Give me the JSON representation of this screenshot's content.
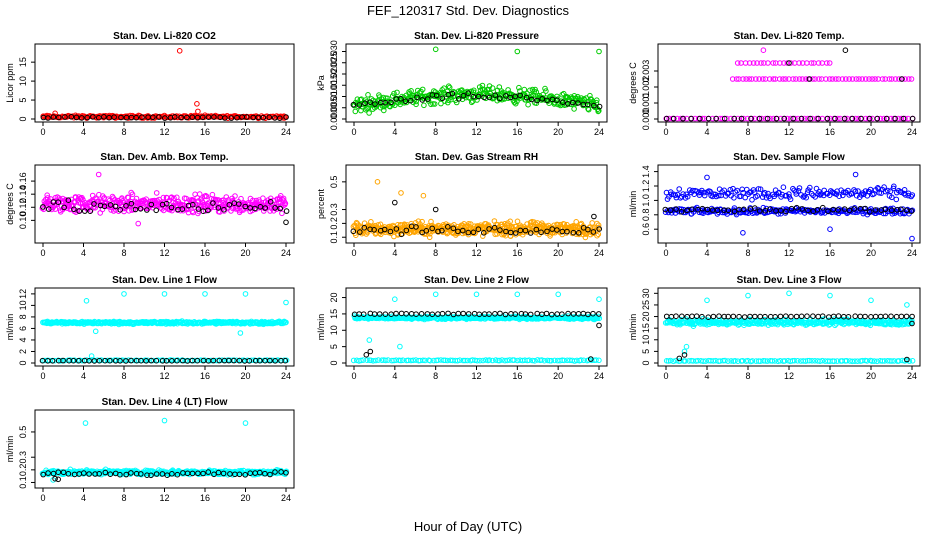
{
  "title": "FEF_120317  Std. Dev. Diagnostics",
  "xlabel": "Hour of Day (UTC)",
  "colors": {
    "red": "#ff0000",
    "green": "#00cc00",
    "magenta": "#ff00ff",
    "orange": "#ffa500",
    "blue": "#0000ff",
    "cyan": "#00ffff",
    "black": "#000000"
  },
  "chart_data": [
    {
      "type": "scatter",
      "title": "Stan. Dev. Li-820 CO2",
      "ylabel": "Licor ppm",
      "xlim": [
        0,
        24
      ],
      "ylim": [
        0,
        19
      ],
      "xticks": [
        "0",
        "4",
        "8",
        "12",
        "16",
        "20",
        "24"
      ],
      "yticks": [
        "0",
        "5",
        "10",
        "15"
      ],
      "ytick_values": [
        0,
        5,
        10,
        15
      ],
      "series": [
        {
          "name": "all",
          "color": "red",
          "base": 0.6,
          "spread": 0.5,
          "smooth": false,
          "count": 220,
          "outliers": [
            [
              13.5,
              18.0
            ],
            [
              15.2,
              4.0
            ],
            [
              15.3,
              2.0
            ],
            [
              1.2,
              1.5
            ]
          ]
        },
        {
          "name": "hourly",
          "color": "black",
          "base": 0.4,
          "spread": 0.3,
          "smooth": false,
          "count": 45,
          "outliers": []
        }
      ]
    },
    {
      "type": "scatter",
      "title": "Stan. Dev. Li-820 Pressure",
      "ylabel": "kPa",
      "xlim": [
        0,
        24
      ],
      "ylim": [
        0,
        0.032
      ],
      "xticks": [
        "0",
        "4",
        "8",
        "12",
        "16",
        "20",
        "24"
      ],
      "yticks": [
        "0.000",
        "0.005",
        "0.010",
        "0.015",
        "0.020",
        "0.025",
        "0.030"
      ],
      "ytick_values": [
        0,
        0.005,
        0.01,
        0.015,
        0.02,
        0.025,
        0.03
      ],
      "series": [
        {
          "name": "all",
          "color": "green",
          "base": 0.006,
          "amp": 0.005,
          "spread": 0.005,
          "smooth": true,
          "count": 360,
          "outliers": [
            [
              8,
              0.031
            ],
            [
              16,
              0.03
            ],
            [
              24,
              0.03
            ]
          ]
        },
        {
          "name": "hourly",
          "color": "black",
          "base": 0.006,
          "amp": 0.004,
          "spread": 0.002,
          "smooth": true,
          "count": 48,
          "outliers": []
        }
      ]
    },
    {
      "type": "scatter",
      "title": "Stan. Dev. Li-820 Temp.",
      "ylabel": "degrees C",
      "xlim": [
        0,
        24
      ],
      "ylim": [
        0,
        0.0045
      ],
      "xticks": [
        "0",
        "4",
        "8",
        "12",
        "16",
        "20",
        "24"
      ],
      "yticks": [
        "0.000",
        "0.001",
        "0.002",
        "0.003"
      ],
      "ytick_values": [
        0,
        0.001,
        0.002,
        0.003
      ],
      "series": [
        {
          "name": "zero",
          "color": "magenta",
          "level": 0,
          "count": 70,
          "outliers": []
        },
        {
          "name": "mid",
          "color": "magenta",
          "level": 0.0025,
          "count": 55,
          "xrange": [
            6.5,
            24
          ],
          "outliers": [
            [
              9.5,
              0.0043
            ]
          ]
        },
        {
          "name": "high",
          "color": "magenta",
          "level": 0.0035,
          "count": 25,
          "xrange": [
            7,
            16
          ],
          "outliers": []
        },
        {
          "name": "hourly",
          "color": "black",
          "level": 0,
          "count": 30,
          "outliers": [
            [
              17.5,
              0.0043
            ],
            [
              23,
              0.0025
            ],
            [
              12,
              0.0035
            ],
            [
              14,
              0.0025
            ]
          ]
        }
      ]
    },
    {
      "type": "scatter",
      "title": "Stan. Dev. Amb. Box Temp.",
      "ylabel": "degrees C",
      "xlim": [
        0,
        24
      ],
      "ylim": [
        0.07,
        0.18
      ],
      "xticks": [
        "0",
        "4",
        "8",
        "12",
        "16",
        "20",
        "24"
      ],
      "yticks": [
        "0.10",
        "0.12",
        "0.14",
        "0.16"
      ],
      "ytick_values": [
        0.1,
        0.12,
        0.14,
        0.16
      ],
      "series": [
        {
          "name": "all",
          "color": "magenta",
          "base": 0.125,
          "spread": 0.02,
          "smooth": false,
          "count": 420,
          "outliers": [
            [
              5.5,
              0.17
            ],
            [
              9.4,
              0.095
            ]
          ]
        },
        {
          "name": "hourly",
          "color": "black",
          "base": 0.12,
          "spread": 0.015,
          "smooth": false,
          "count": 48,
          "outliers": [
            [
              24,
              0.097
            ]
          ]
        }
      ]
    },
    {
      "type": "scatter",
      "title": "Stan. Dev. Gas Stream RH",
      "ylabel": "percent",
      "xlim": [
        0,
        24
      ],
      "ylim": [
        0.08,
        0.6
      ],
      "xticks": [
        "0",
        "4",
        "8",
        "12",
        "16",
        "20",
        "24"
      ],
      "yticks": [
        "0.1",
        "0.2",
        "0.3",
        "0.5"
      ],
      "ytick_values": [
        0.1,
        0.2,
        0.3,
        0.5
      ],
      "series": [
        {
          "name": "all",
          "color": "orange",
          "base": 0.16,
          "spread": 0.07,
          "smooth": false,
          "count": 480,
          "outliers": [
            [
              2.3,
              0.5
            ],
            [
              4.6,
              0.42
            ],
            [
              6.8,
              0.4
            ]
          ]
        },
        {
          "name": "hourly",
          "color": "black",
          "base": 0.15,
          "spread": 0.04,
          "smooth": false,
          "count": 48,
          "outliers": [
            [
              4,
              0.35
            ],
            [
              8,
              0.3
            ],
            [
              23.5,
              0.25
            ]
          ]
        }
      ]
    },
    {
      "type": "scatter",
      "title": "Stan. Dev. Sample Flow",
      "ylabel": "ml/min",
      "xlim": [
        0,
        24
      ],
      "ylim": [
        0.45,
        1.45
      ],
      "xticks": [
        "0",
        "4",
        "8",
        "12",
        "16",
        "20",
        "24"
      ],
      "yticks": [
        "0.6",
        "0.8",
        "1.0",
        "1.2",
        "1.4"
      ],
      "ytick_values": [
        0.6,
        0.8,
        1.0,
        1.2,
        1.4
      ],
      "series": [
        {
          "name": "high",
          "color": "blue",
          "base": 1.1,
          "spread": 0.12,
          "smooth": false,
          "count": 170,
          "outliers": [
            [
              4,
              1.32
            ],
            [
              18.5,
              1.36
            ]
          ]
        },
        {
          "name": "low",
          "color": "blue",
          "base": 0.85,
          "spread": 0.06,
          "smooth": false,
          "count": 230,
          "outliers": [
            [
              7.5,
              0.55
            ],
            [
              16,
              0.6
            ],
            [
              24,
              0.47
            ]
          ]
        },
        {
          "name": "hourly",
          "color": "black",
          "base": 0.87,
          "spread": 0.04,
          "smooth": false,
          "count": 48,
          "outliers": []
        }
      ]
    },
    {
      "type": "scatter",
      "title": "Stan. Dev. Line 1 Flow",
      "ylabel": "ml/min",
      "xlim": [
        0,
        24
      ],
      "ylim": [
        0,
        12.5
      ],
      "xticks": [
        "0",
        "4",
        "8",
        "12",
        "16",
        "20",
        "24"
      ],
      "yticks": [
        "0",
        "2",
        "4",
        "6",
        "8",
        "10",
        "12"
      ],
      "ytick_values": [
        0,
        2,
        4,
        6,
        8,
        10,
        12
      ],
      "series": [
        {
          "name": "upper",
          "color": "cyan",
          "base": 7.0,
          "spread": 0.35,
          "smooth": false,
          "count": 380,
          "outliers": [
            [
              4.3,
              10.8
            ],
            [
              8,
              12
            ],
            [
              12,
              12
            ],
            [
              16,
              12
            ],
            [
              20,
              12
            ],
            [
              24,
              10.5
            ],
            [
              5.2,
              5.5
            ],
            [
              19.5,
              5.2
            ],
            [
              4.8,
              1.2
            ]
          ]
        },
        {
          "name": "lower",
          "color": "cyan",
          "base": 0.45,
          "spread": 0.1,
          "smooth": false,
          "count": 100,
          "outliers": []
        },
        {
          "name": "hourly",
          "color": "black",
          "base": 0.4,
          "spread": 0.05,
          "smooth": false,
          "count": 48,
          "outliers": []
        }
      ]
    },
    {
      "type": "scatter",
      "title": "Stan. Dev. Line 2 Flow",
      "ylabel": "ml/min",
      "xlim": [
        0,
        24
      ],
      "ylim": [
        0,
        22
      ],
      "xticks": [
        "0",
        "4",
        "8",
        "12",
        "16",
        "20",
        "24"
      ],
      "yticks": [
        "0",
        "5",
        "10",
        "15",
        "20"
      ],
      "ytick_values": [
        0,
        5,
        10,
        15,
        20
      ],
      "series": [
        {
          "name": "upper",
          "color": "cyan",
          "base": 13.8,
          "spread": 0.6,
          "smooth": false,
          "count": 380,
          "outliers": [
            [
              4,
              19.5
            ],
            [
              8,
              21
            ],
            [
              12,
              21
            ],
            [
              16,
              21
            ],
            [
              20,
              21
            ],
            [
              24,
              19.5
            ],
            [
              1.5,
              7
            ],
            [
              4.5,
              5
            ]
          ]
        },
        {
          "name": "lower",
          "color": "cyan",
          "base": 0.8,
          "spread": 0.2,
          "smooth": false,
          "count": 100,
          "outliers": []
        },
        {
          "name": "hourly",
          "color": "black",
          "base": 15.0,
          "spread": 0.3,
          "smooth": false,
          "count": 48,
          "outliers": [
            [
              1.2,
              2.5
            ],
            [
              1.6,
              3.5
            ],
            [
              23.2,
              1.2
            ],
            [
              24,
              11.5
            ]
          ]
        }
      ]
    },
    {
      "type": "scatter",
      "title": "Stan. Dev. Line 3 Flow",
      "ylabel": "ml/min",
      "xlim": [
        0,
        24
      ],
      "ylim": [
        0,
        31
      ],
      "xticks": [
        "0",
        "4",
        "8",
        "12",
        "16",
        "20",
        "24"
      ],
      "yticks": [
        "0",
        "5",
        "10",
        "15",
        "20",
        "25",
        "30"
      ],
      "ytick_values": [
        0,
        5,
        10,
        15,
        20,
        25,
        30
      ],
      "series": [
        {
          "name": "upper",
          "color": "cyan",
          "base": 17.5,
          "spread": 1.8,
          "smooth": false,
          "count": 380,
          "outliers": [
            [
              4,
              27
            ],
            [
              8,
              29
            ],
            [
              12,
              30
            ],
            [
              16,
              29
            ],
            [
              20,
              27
            ],
            [
              23.5,
              25
            ],
            [
              2,
              7
            ],
            [
              1.8,
              5
            ]
          ]
        },
        {
          "name": "lower",
          "color": "cyan",
          "base": 0.9,
          "spread": 0.3,
          "smooth": false,
          "count": 100,
          "outliers": []
        },
        {
          "name": "hourly",
          "color": "black",
          "base": 20.0,
          "spread": 0.4,
          "smooth": false,
          "count": 48,
          "outliers": [
            [
              1.3,
              2
            ],
            [
              1.8,
              3.5
            ],
            [
              23.5,
              1.5
            ],
            [
              24,
              17
            ]
          ]
        }
      ]
    },
    {
      "type": "scatter",
      "title": "Stan. Dev. Line 4 (LT) Flow",
      "ylabel": "ml/min",
      "xlim": [
        0,
        24
      ],
      "ylim": [
        0.08,
        0.65
      ],
      "xticks": [
        "0",
        "4",
        "8",
        "12",
        "16",
        "20",
        "24"
      ],
      "yticks": [
        "0.1",
        "0.2",
        "0.3",
        "0.5"
      ],
      "ytick_values": [
        0.1,
        0.2,
        0.3,
        0.5
      ],
      "series": [
        {
          "name": "all",
          "color": "cyan",
          "base": 0.18,
          "spread": 0.025,
          "smooth": false,
          "count": 420,
          "outliers": [
            [
              4.2,
              0.57
            ],
            [
              12,
              0.59
            ],
            [
              20,
              0.57
            ],
            [
              1,
              0.12
            ]
          ]
        },
        {
          "name": "hourly",
          "color": "black",
          "base": 0.17,
          "spread": 0.02,
          "smooth": false,
          "count": 48,
          "outliers": [
            [
              1.2,
              0.13
            ],
            [
              1.5,
              0.125
            ]
          ]
        }
      ]
    }
  ]
}
